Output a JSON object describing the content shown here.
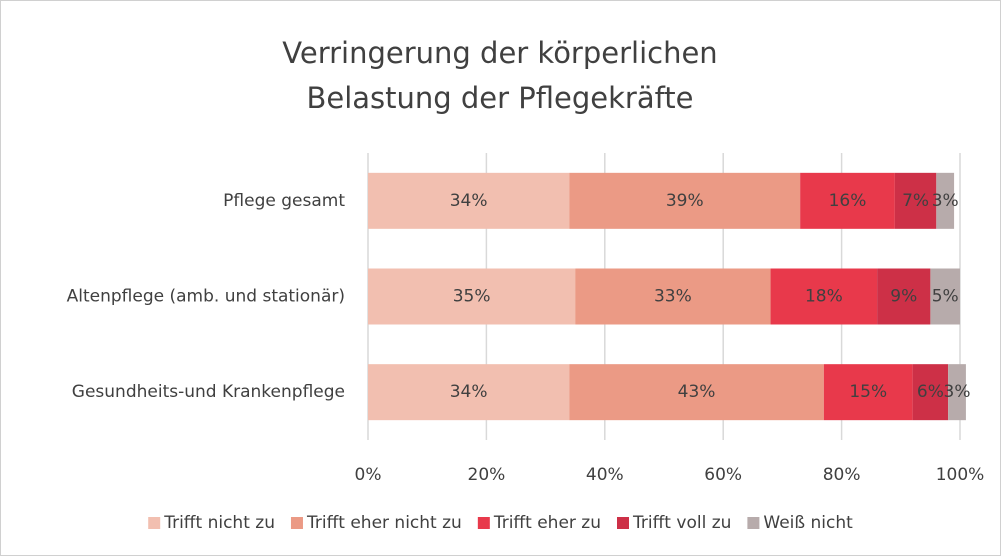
{
  "chart_data": {
    "type": "stacked-barh",
    "title": [
      "Verringerung der körperlichen",
      "Belastung der Pflegekräfte"
    ],
    "categories": [
      "Pflege gesamt",
      "Altenpflege (amb. und stationär)",
      "Gesundheits-und Krankenpflege"
    ],
    "series": [
      {
        "name": "Trifft nicht zu",
        "color": "#f2bfb0",
        "values": [
          34,
          35,
          34
        ],
        "value_labels": [
          "34%",
          "35%",
          "34%"
        ]
      },
      {
        "name": "Trifft eher nicht zu",
        "color": "#eb9a85",
        "values": [
          39,
          33,
          43
        ],
        "value_labels": [
          "39%",
          "33%",
          "43%"
        ]
      },
      {
        "name": "Trifft eher zu",
        "color": "#e8394b",
        "values": [
          16,
          18,
          15
        ],
        "value_labels": [
          "16%",
          "18%",
          "15%"
        ]
      },
      {
        "name": "Trifft voll zu",
        "color": "#cd3047",
        "values": [
          7,
          9,
          6
        ],
        "value_labels": [
          "7%",
          "9%",
          "6%"
        ]
      },
      {
        "name": "Weiß nicht",
        "color": "#b7abab",
        "values": [
          3,
          5,
          3
        ],
        "value_labels": [
          "3%",
          "5%",
          "3%"
        ]
      }
    ],
    "xlim": [
      0,
      100
    ],
    "xticks": [
      {
        "value": 0,
        "label": "0%"
      },
      {
        "value": 20,
        "label": "20%"
      },
      {
        "value": 40,
        "label": "40%"
      },
      {
        "value": 60,
        "label": "60%"
      },
      {
        "value": 80,
        "label": "80%"
      },
      {
        "value": 100,
        "label": "100%"
      }
    ],
    "grid": true,
    "legend": "bottom"
  }
}
